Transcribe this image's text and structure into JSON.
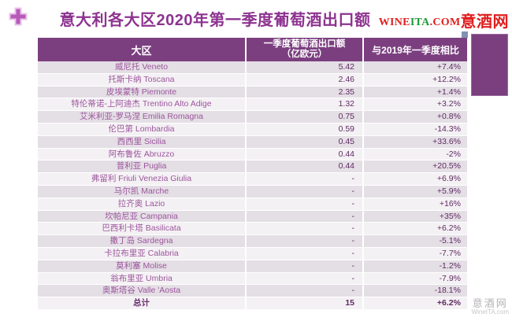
{
  "title": "意大利各大区2020年第一季度葡萄酒出口额",
  "logo": {
    "wine": "WINE",
    "ita": "ITA",
    "dotcom": ".COM",
    "cn": "意酒网",
    "red": "#e01f1f",
    "green": "#1d9a3a"
  },
  "colors": {
    "header_purple": "#7b3f80",
    "title_purple": "#8d3390",
    "row_odd": "#e4dee5",
    "row_even": "#f4f1f4",
    "region_text": "#9b559c",
    "value_text": "#5f2a63",
    "blue_square": "#8192b5",
    "plus_icon": "#b75ab9"
  },
  "chart_data": {
    "type": "table",
    "title": "意大利各大区2020年第一季度葡萄酒出口额",
    "columns": [
      "大区",
      "一季度葡萄酒出口额（亿欧元）",
      "与2019年一季度相比"
    ],
    "header": {
      "col1": "大区",
      "col2_line1": "一季度葡萄酒出口额",
      "col2_line2": "（亿欧元）",
      "col3": "与2019年一季度相比"
    },
    "rows": [
      {
        "region": "威尼托  Veneto",
        "value": "5.42",
        "change": "+7.4%"
      },
      {
        "region": "托斯卡纳  Toscana",
        "value": "2.46",
        "change": "+12.2%"
      },
      {
        "region": "皮埃蒙特  Piemonte",
        "value": "2.35",
        "change": "+1.4%"
      },
      {
        "region": "特伦蒂诺-上阿迪杰  Trentino Alto Adige",
        "value": "1.32",
        "change": "+3.2%"
      },
      {
        "region": "艾米利亚-罗马涅  Emilia Romagna",
        "value": "0.75",
        "change": "+0.8%"
      },
      {
        "region": "伦巴第  Lombardia",
        "value": "0.59",
        "change": "-14.3%"
      },
      {
        "region": "西西里  Sicilia",
        "value": "0.45",
        "change": "+33.6%"
      },
      {
        "region": "阿布鲁佐  Abruzzo",
        "value": "0.44",
        "change": "-2%"
      },
      {
        "region": "普利亚  Puglia",
        "value": "0.44",
        "change": "+20.5%"
      },
      {
        "region": "弗留利  Friuli Venezia Giulia",
        "value": "-",
        "change": "+6.9%"
      },
      {
        "region": "马尔凯  Marche",
        "value": "-",
        "change": "+5.9%"
      },
      {
        "region": "拉齐奥 Lazio",
        "value": "-",
        "change": "+16%"
      },
      {
        "region": "坎帕尼亚  Campania",
        "value": "-",
        "change": "+35%"
      },
      {
        "region": "巴西利卡塔  Basilicata",
        "value": "-",
        "change": "+6.2%"
      },
      {
        "region": "撒丁岛  Sardegna",
        "value": "-",
        "change": "-5.1%"
      },
      {
        "region": "卡拉布里亚  Calabria",
        "value": "-",
        "change": "-7.7%"
      },
      {
        "region": "莫利塞  Molise",
        "value": "-",
        "change": "-1.2%"
      },
      {
        "region": "翁布里亚  Umbria",
        "value": "-",
        "change": "-7.9%"
      },
      {
        "region": "奥斯塔谷  Valle 'Aosta",
        "value": "-",
        "change": "-18.1%"
      },
      {
        "region": "总计",
        "value": "15",
        "change": "+6.2%",
        "total": true
      }
    ]
  },
  "watermark": {
    "cn": "意酒网",
    "en": "WineITA.com"
  }
}
